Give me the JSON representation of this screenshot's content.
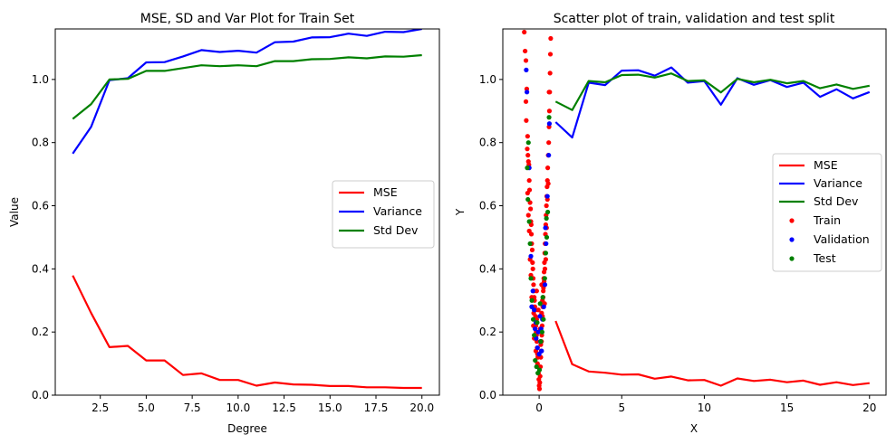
{
  "chart_data": [
    {
      "type": "line",
      "title": "MSE, SD and Var Plot for Train Set",
      "xlabel": "Degree",
      "ylabel": "Value",
      "xlim": [
        0.05,
        20.95
      ],
      "ylim": [
        0.0,
        1.16
      ],
      "xticks": [
        2.5,
        5.0,
        7.5,
        10.0,
        12.5,
        15.0,
        17.5,
        20.0
      ],
      "xtick_labels": [
        "2.5",
        "5.0",
        "7.5",
        "10.0",
        "12.5",
        "15.0",
        "17.5",
        "20.0"
      ],
      "yticks": [
        0.0,
        0.2,
        0.4,
        0.6,
        0.8,
        1.0
      ],
      "ytick_labels": [
        "0.0",
        "0.2",
        "0.4",
        "0.6",
        "0.8",
        "1.0"
      ],
      "legend_position": "center-right",
      "x": [
        1,
        2,
        3,
        4,
        5,
        6,
        7,
        8,
        9,
        10,
        11,
        12,
        13,
        14,
        15,
        16,
        17,
        18,
        19,
        20
      ],
      "series": [
        {
          "name": "MSE",
          "color": "#ff0000",
          "values": [
            0.379,
            0.26,
            0.152,
            0.156,
            0.11,
            0.11,
            0.064,
            0.069,
            0.048,
            0.048,
            0.03,
            0.04,
            0.034,
            0.033,
            0.029,
            0.029,
            0.025,
            0.025,
            0.023,
            0.023
          ]
        },
        {
          "name": "Variance",
          "color": "#0000ff",
          "values": [
            0.765,
            0.85,
            0.998,
            1.004,
            1.054,
            1.055,
            1.073,
            1.093,
            1.087,
            1.091,
            1.085,
            1.118,
            1.12,
            1.133,
            1.134,
            1.145,
            1.138,
            1.151,
            1.15,
            1.16
          ]
        },
        {
          "name": "Std Dev",
          "color": "#008000",
          "values": [
            0.875,
            0.922,
            1.0,
            1.002,
            1.027,
            1.027,
            1.036,
            1.045,
            1.042,
            1.045,
            1.042,
            1.058,
            1.058,
            1.064,
            1.065,
            1.07,
            1.067,
            1.073,
            1.072,
            1.077
          ]
        }
      ]
    },
    {
      "type": "scatter",
      "title": "Scatter plot of train, validation and test split",
      "xlabel": "X",
      "ylabel": "Y",
      "xlim": [
        -2.2,
        21.0
      ],
      "ylim": [
        0.0,
        1.16
      ],
      "xticks": [
        0,
        5,
        10,
        15,
        20
      ],
      "xtick_labels": [
        "0",
        "5",
        "10",
        "15",
        "20"
      ],
      "yticks": [
        0.0,
        0.2,
        0.4,
        0.6,
        0.8,
        1.0
      ],
      "ytick_labels": [
        "0.0",
        "0.2",
        "0.4",
        "0.6",
        "0.8",
        "1.0"
      ],
      "legend_position": "center-right",
      "x": [
        1,
        2,
        3,
        4,
        5,
        6,
        7,
        8,
        9,
        10,
        11,
        12,
        13,
        14,
        15,
        16,
        17,
        18,
        19,
        20
      ],
      "series": [
        {
          "name": "MSE",
          "color": "#ff0000",
          "values": [
            0.235,
            0.098,
            0.075,
            0.071,
            0.065,
            0.066,
            0.052,
            0.059,
            0.047,
            0.048,
            0.03,
            0.053,
            0.045,
            0.049,
            0.041,
            0.046,
            0.033,
            0.041,
            0.032,
            0.038
          ]
        },
        {
          "name": "Variance",
          "color": "#0000ff",
          "values": [
            0.865,
            0.816,
            0.99,
            0.982,
            1.028,
            1.029,
            1.012,
            1.038,
            0.99,
            0.995,
            0.92,
            1.004,
            0.983,
            0.998,
            0.976,
            0.99,
            0.945,
            0.969,
            0.94,
            0.96
          ]
        },
        {
          "name": "Std Dev",
          "color": "#008000",
          "values": [
            0.93,
            0.903,
            0.995,
            0.991,
            1.014,
            1.015,
            1.006,
            1.019,
            0.995,
            0.997,
            0.959,
            1.002,
            0.991,
            0.999,
            0.988,
            0.995,
            0.972,
            0.984,
            0.97,
            0.98
          ]
        }
      ],
      "scatter_series": [
        {
          "name": "Train",
          "color": "#ff0000",
          "points": [
            [
              -0.9,
              1.15
            ],
            [
              -0.85,
              1.09
            ],
            [
              -0.8,
              1.06
            ],
            [
              -0.75,
              0.97
            ],
            [
              -0.78,
              0.87
            ],
            [
              -0.7,
              0.82
            ],
            [
              -0.72,
              0.78
            ],
            [
              -0.68,
              0.76
            ],
            [
              -0.65,
              0.74
            ],
            [
              -0.62,
              0.73
            ],
            [
              -0.6,
              0.68
            ],
            [
              -0.58,
              0.65
            ],
            [
              -0.55,
              0.61
            ],
            [
              -0.52,
              0.59
            ],
            [
              -0.5,
              0.55
            ],
            [
              -0.48,
              0.54
            ],
            [
              -0.47,
              0.51
            ],
            [
              -0.45,
              0.48
            ],
            [
              -0.42,
              0.46
            ],
            [
              -0.4,
              0.42
            ],
            [
              -0.38,
              0.4
            ],
            [
              -0.36,
              0.37
            ],
            [
              -0.34,
              0.35
            ],
            [
              -0.32,
              0.33
            ],
            [
              -0.3,
              0.31
            ],
            [
              -0.28,
              0.3
            ],
            [
              -0.26,
              0.28
            ],
            [
              -0.24,
              0.27
            ],
            [
              -0.22,
              0.25
            ],
            [
              -0.2,
              0.22
            ],
            [
              -0.18,
              0.2
            ],
            [
              -0.16,
              0.19
            ],
            [
              -0.14,
              0.17
            ],
            [
              -0.12,
              0.15
            ],
            [
              -0.1,
              0.13
            ],
            [
              -0.08,
              0.12
            ],
            [
              -0.06,
              0.09
            ],
            [
              -0.04,
              0.07
            ],
            [
              -0.02,
              0.05
            ],
            [
              0.0,
              0.03
            ],
            [
              0.02,
              0.02
            ],
            [
              0.04,
              0.04
            ],
            [
              0.06,
              0.06
            ],
            [
              0.08,
              0.09
            ],
            [
              0.1,
              0.12
            ],
            [
              0.12,
              0.14
            ],
            [
              0.14,
              0.17
            ],
            [
              0.16,
              0.19
            ],
            [
              0.18,
              0.22
            ],
            [
              0.2,
              0.25
            ],
            [
              0.22,
              0.28
            ],
            [
              0.24,
              0.31
            ],
            [
              0.26,
              0.34
            ],
            [
              0.28,
              0.37
            ],
            [
              0.3,
              0.39
            ],
            [
              0.32,
              0.42
            ],
            [
              0.34,
              0.45
            ],
            [
              0.36,
              0.48
            ],
            [
              0.38,
              0.51
            ],
            [
              0.4,
              0.54
            ],
            [
              0.42,
              0.57
            ],
            [
              0.44,
              0.6
            ],
            [
              0.46,
              0.63
            ],
            [
              0.48,
              0.66
            ],
            [
              0.5,
              0.68
            ],
            [
              0.52,
              0.72
            ],
            [
              0.55,
              0.76
            ],
            [
              0.58,
              0.8
            ],
            [
              0.6,
              0.85
            ],
            [
              0.62,
              0.9
            ],
            [
              0.64,
              0.96
            ],
            [
              0.66,
              1.02
            ],
            [
              0.68,
              1.08
            ],
            [
              0.7,
              1.13
            ],
            [
              -0.55,
              0.43
            ],
            [
              -0.45,
              0.31
            ],
            [
              -0.35,
              0.22
            ],
            [
              -0.25,
              0.19
            ],
            [
              -0.15,
              0.24
            ],
            [
              -0.05,
              0.27
            ],
            [
              0.05,
              0.21
            ],
            [
              0.15,
              0.26
            ],
            [
              0.25,
              0.33
            ],
            [
              0.35,
              0.4
            ],
            [
              -0.6,
              0.52
            ],
            [
              -0.5,
              0.38
            ],
            [
              -0.4,
              0.28
            ],
            [
              -0.3,
              0.18
            ],
            [
              -0.2,
              0.14
            ],
            [
              -0.1,
              0.1
            ],
            [
              0.1,
              0.16
            ],
            [
              0.2,
              0.3
            ],
            [
              0.3,
              0.36
            ],
            [
              0.4,
              0.43
            ],
            [
              0.5,
              0.62
            ],
            [
              -0.7,
              0.64
            ],
            [
              -0.65,
              0.57
            ],
            [
              0.45,
              0.53
            ],
            [
              0.55,
              0.67
            ],
            [
              -0.33,
              0.26
            ],
            [
              0.33,
              0.29
            ],
            [
              -0.15,
              0.33
            ],
            [
              0.15,
              0.35
            ],
            [
              0.6,
              0.96
            ],
            [
              -0.8,
              0.93
            ]
          ]
        },
        {
          "name": "Validation",
          "color": "#0000ff",
          "points": [
            [
              -0.78,
              1.03
            ],
            [
              -0.74,
              0.96
            ],
            [
              -0.6,
              0.72
            ],
            [
              -0.5,
              0.44
            ],
            [
              -0.45,
              0.28
            ],
            [
              -0.38,
              0.33
            ],
            [
              -0.3,
              0.27
            ],
            [
              -0.25,
              0.21
            ],
            [
              -0.18,
              0.18
            ],
            [
              -0.1,
              0.15
            ],
            [
              0.0,
              0.13
            ],
            [
              0.08,
              0.17
            ],
            [
              0.12,
              0.21
            ],
            [
              0.2,
              0.24
            ],
            [
              0.28,
              0.28
            ],
            [
              0.35,
              0.35
            ],
            [
              0.42,
              0.48
            ],
            [
              0.5,
              0.63
            ],
            [
              0.58,
              0.76
            ],
            [
              0.62,
              0.86
            ],
            [
              -0.2,
              0.23
            ],
            [
              0.05,
              0.25
            ],
            [
              0.15,
              0.14
            ],
            [
              -0.05,
              0.2
            ],
            [
              0.38,
              0.53
            ]
          ]
        },
        {
          "name": "Test",
          "color": "#008000",
          "points": [
            [
              -0.72,
              0.72
            ],
            [
              -0.68,
              0.62
            ],
            [
              -0.6,
              0.55
            ],
            [
              -0.55,
              0.48
            ],
            [
              -0.5,
              0.37
            ],
            [
              -0.44,
              0.3
            ],
            [
              -0.36,
              0.24
            ],
            [
              -0.3,
              0.19
            ],
            [
              -0.24,
              0.11
            ],
            [
              -0.16,
              0.09
            ],
            [
              -0.08,
              0.07
            ],
            [
              0.02,
              0.08
            ],
            [
              0.1,
              0.17
            ],
            [
              0.18,
              0.2
            ],
            [
              0.26,
              0.24
            ],
            [
              0.34,
              0.37
            ],
            [
              0.4,
              0.45
            ],
            [
              0.46,
              0.5
            ],
            [
              0.52,
              0.58
            ],
            [
              0.6,
              0.88
            ],
            [
              -0.12,
              0.23
            ],
            [
              0.06,
              0.29
            ],
            [
              0.22,
              0.31
            ],
            [
              -0.65,
              0.8
            ],
            [
              0.44,
              0.56
            ]
          ]
        }
      ]
    }
  ]
}
